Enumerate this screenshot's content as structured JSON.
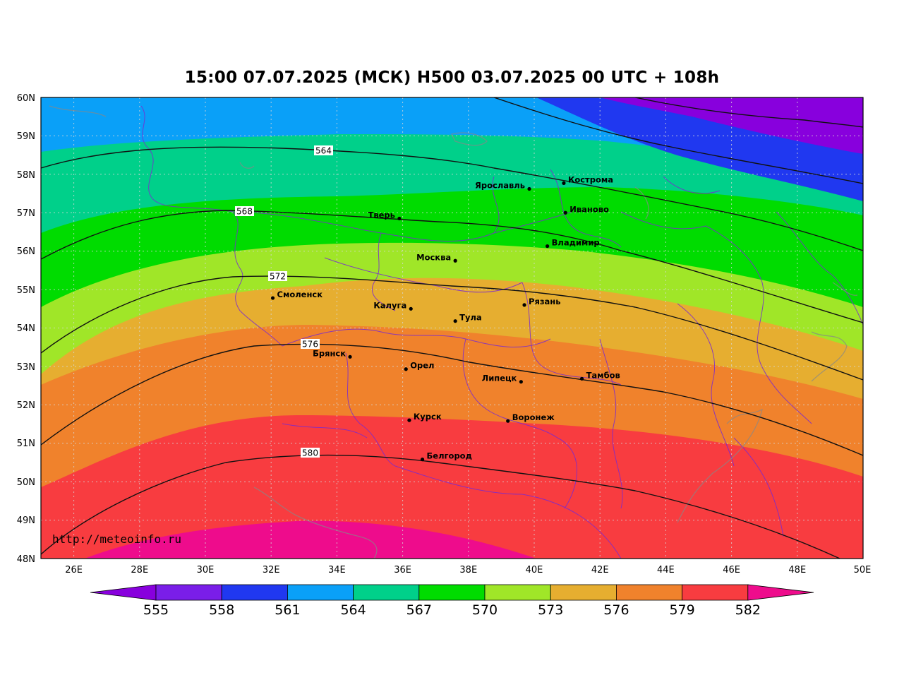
{
  "title": "15:00 07.07.2025 (МСК) H500  03.07.2025 00 UTC + 108h",
  "watermark": "http://meteoinfo.ru",
  "map": {
    "lon_range": [
      25,
      50
    ],
    "lat_range": [
      48,
      60
    ],
    "lat_ticks": [
      "60N",
      "59N",
      "58N",
      "57N",
      "56N",
      "55N",
      "54N",
      "53N",
      "52N",
      "51N",
      "50N",
      "49N",
      "48N"
    ],
    "lon_ticks": [
      "26E",
      "28E",
      "30E",
      "32E",
      "34E",
      "36E",
      "38E",
      "40E",
      "42E",
      "44E",
      "46E",
      "48E",
      "50E"
    ],
    "grid": true
  },
  "cities": [
    {
      "name": "Кострома",
      "lon": 40.9,
      "lat": 57.77,
      "label_side": "right"
    },
    {
      "name": "Ярославль",
      "lon": 39.85,
      "lat": 57.62,
      "label_side": "left"
    },
    {
      "name": "Иваново",
      "lon": 40.95,
      "lat": 57.0,
      "label_side": "right"
    },
    {
      "name": "Тверь",
      "lon": 35.9,
      "lat": 56.85,
      "label_side": "left"
    },
    {
      "name": "Владимир",
      "lon": 40.4,
      "lat": 56.13,
      "label_side": "right"
    },
    {
      "name": "Москва",
      "lon": 37.6,
      "lat": 55.75,
      "label_side": "left"
    },
    {
      "name": "Смоленск",
      "lon": 32.05,
      "lat": 54.78,
      "label_side": "right"
    },
    {
      "name": "Рязань",
      "lon": 39.7,
      "lat": 54.6,
      "label_side": "right"
    },
    {
      "name": "Калуга",
      "lon": 36.25,
      "lat": 54.5,
      "label_side": "left"
    },
    {
      "name": "Тула",
      "lon": 37.6,
      "lat": 54.18,
      "label_side": "right"
    },
    {
      "name": "Брянск",
      "lon": 34.4,
      "lat": 53.25,
      "label_side": "left"
    },
    {
      "name": "Орел",
      "lon": 36.1,
      "lat": 52.93,
      "label_side": "right"
    },
    {
      "name": "Липецк",
      "lon": 39.6,
      "lat": 52.6,
      "label_side": "left"
    },
    {
      "name": "Тамбов",
      "lon": 41.45,
      "lat": 52.68,
      "label_side": "right"
    },
    {
      "name": "Курск",
      "lon": 36.2,
      "lat": 51.6,
      "label_side": "right"
    },
    {
      "name": "Воронеж",
      "lon": 39.2,
      "lat": 51.58,
      "label_side": "right"
    },
    {
      "name": "Белгород",
      "lon": 36.6,
      "lat": 50.58,
      "label_side": "right"
    }
  ],
  "isolines": [
    {
      "label": "564"
    },
    {
      "label": "568"
    },
    {
      "label": "572"
    },
    {
      "label": "576"
    },
    {
      "label": "580"
    }
  ],
  "colorbar": {
    "labels": [
      "555",
      "558",
      "561",
      "564",
      "567",
      "570",
      "573",
      "576",
      "579",
      "582"
    ],
    "colors": [
      "#8800dd",
      "#7a1ee8",
      "#2038f0",
      "#0aa0f8",
      "#00d08a",
      "#00dc00",
      "#a0e628",
      "#e6ae30",
      "#f0822c",
      "#f83c40",
      "#ee0c8c"
    ]
  }
}
